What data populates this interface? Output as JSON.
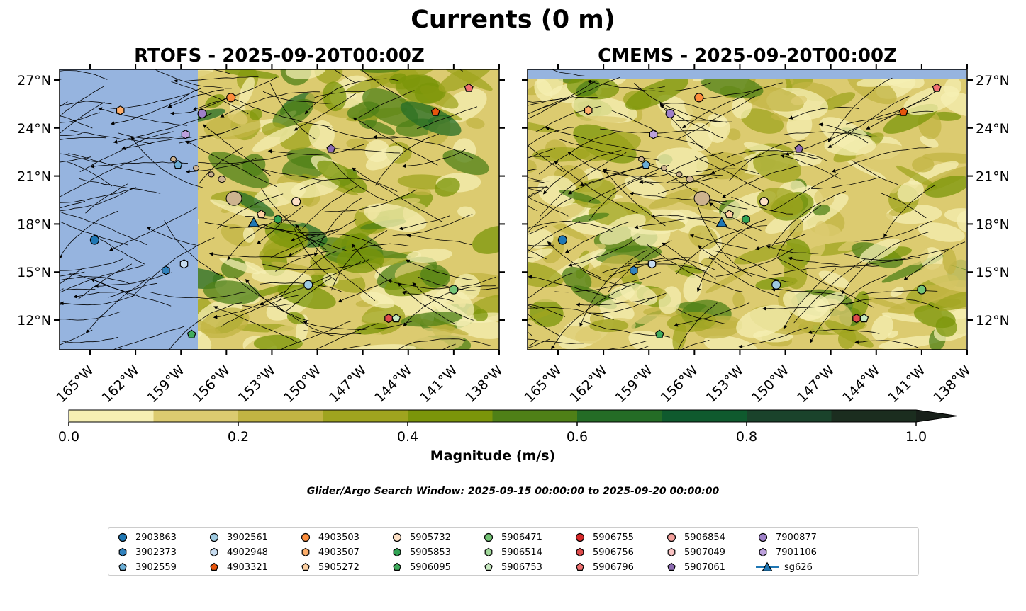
{
  "title": "Currents (0 m)",
  "panels": [
    {
      "title": "RTOFS - 2025-09-20T00:00Z",
      "model": "RTOFS"
    },
    {
      "title": "CMEMS - 2025-09-20T00:00Z",
      "model": "CMEMS"
    }
  ],
  "subtitle": "Glider/Argo Search Window: 2025-09-15 00:00:00 to 2025-09-20 00:00:00",
  "colorbar": {
    "label": "Magnitude (m/s)",
    "ticks": [
      "0.0",
      "0.2",
      "0.4",
      "0.6",
      "0.8",
      "1.0"
    ],
    "levels": [
      0,
      0.1,
      0.2,
      0.3,
      0.4,
      0.5,
      0.6,
      0.7,
      0.8,
      0.9,
      1.0
    ],
    "colors": [
      "#f6efb3",
      "#dccb70",
      "#c1b443",
      "#9fa41f",
      "#7b950a",
      "#4f8017",
      "#246c26",
      "#0f5a2e",
      "#1a432b",
      "#1b2d1f"
    ],
    "extend": "max"
  },
  "chart_data": {
    "type": "map",
    "xlim": [
      -167.0,
      -138.0
    ],
    "ylim": [
      10.1,
      27.7
    ],
    "xticks": [
      "165°W",
      "162°W",
      "159°W",
      "156°W",
      "153°W",
      "150°W",
      "147°W",
      "144°W",
      "141°W",
      "138°W"
    ],
    "xtick_values": [
      -165,
      -162,
      -159,
      -156,
      -153,
      -150,
      -147,
      -144,
      -141,
      -138
    ],
    "yticks": [
      "27°N",
      "24°N",
      "21°N",
      "18°N",
      "15°N",
      "12°N"
    ],
    "ytick_values": [
      27,
      24,
      21,
      18,
      15,
      12
    ],
    "platforms": [
      {
        "id": "2903863",
        "marker": "circle",
        "color": "#1f77b4",
        "lon": -164.7,
        "lat": 17.0
      },
      {
        "id": "3902373",
        "marker": "hexagon",
        "color": "#3182bd",
        "lon": -160.0,
        "lat": 15.1
      },
      {
        "id": "3902559",
        "marker": "pentagon",
        "color": "#6baed6",
        "lon": -159.2,
        "lat": 21.7
      },
      {
        "id": "3902561",
        "marker": "circle",
        "color": "#9ecae1",
        "lon": -150.6,
        "lat": 14.2
      },
      {
        "id": "4902948",
        "marker": "hexagon",
        "color": "#c6dbef",
        "lon": -158.8,
        "lat": 15.5
      },
      {
        "id": "4903321",
        "marker": "pentagon",
        "color": "#e6550d",
        "lon": -142.2,
        "lat": 25.0
      },
      {
        "id": "4903503",
        "marker": "circle",
        "color": "#fd8d3c",
        "lon": -155.7,
        "lat": 25.9
      },
      {
        "id": "4903507",
        "marker": "hexagon",
        "color": "#fdae6b",
        "lon": -163.0,
        "lat": 25.1
      },
      {
        "id": "5905272",
        "marker": "pentagon",
        "color": "#fdd0a2",
        "lon": -153.7,
        "lat": 18.6
      },
      {
        "id": "5905732",
        "marker": "circle",
        "color": "#fde0c5",
        "lon": -151.4,
        "lat": 19.4
      },
      {
        "id": "5905853",
        "marker": "hexagon",
        "color": "#31a354",
        "lon": -152.6,
        "lat": 18.3
      },
      {
        "id": "5906095",
        "marker": "pentagon",
        "color": "#41ab5d",
        "lon": -158.3,
        "lat": 11.1
      },
      {
        "id": "5906471",
        "marker": "circle",
        "color": "#74c476",
        "lon": -141.0,
        "lat": 13.9
      },
      {
        "id": "5906514",
        "marker": "hexagon",
        "color": "#a1d99b",
        "lon": null,
        "lat": null
      },
      {
        "id": "5906753",
        "marker": "pentagon",
        "color": "#c7e9c0",
        "lon": -144.8,
        "lat": 12.1
      },
      {
        "id": "5906755",
        "marker": "circle",
        "color": "#d62728",
        "lon": null,
        "lat": null
      },
      {
        "id": "5906756",
        "marker": "hexagon",
        "color": "#de4c4c",
        "lon": -145.3,
        "lat": 12.1
      },
      {
        "id": "5906796",
        "marker": "pentagon",
        "color": "#f07070",
        "lon": -140.0,
        "lat": 26.5
      },
      {
        "id": "5906854",
        "marker": "circle",
        "color": "#f4a09c",
        "lon": null,
        "lat": null
      },
      {
        "id": "5907049",
        "marker": "hexagon",
        "color": "#fbc4c4",
        "lon": null,
        "lat": null
      },
      {
        "id": "5907061",
        "marker": "pentagon",
        "color": "#8c6bb1",
        "lon": -149.1,
        "lat": 22.7
      },
      {
        "id": "7900877",
        "marker": "circle",
        "color": "#9e80c8",
        "lon": -157.6,
        "lat": 24.9
      },
      {
        "id": "7901106",
        "marker": "hexagon",
        "color": "#bca0dc",
        "lon": -158.7,
        "lat": 23.6
      },
      {
        "id": "sg626",
        "marker": "triangle",
        "color": "#1f77b4",
        "lon": -154.2,
        "lat": 18.1
      }
    ]
  }
}
